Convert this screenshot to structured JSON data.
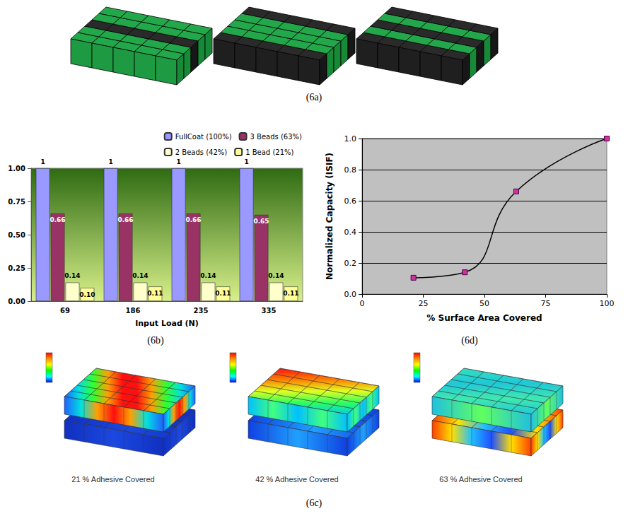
{
  "captions": {
    "6a": "(6a)",
    "6b": "(6b)",
    "6c": "(6c)",
    "6d": "(6d)"
  },
  "chart_data": [
    {
      "type": "bar",
      "categories": [
        "69",
        "186",
        "235",
        "335"
      ],
      "xlabel": "Input Load (N)",
      "series": [
        {
          "name": "FullCoat (100%)",
          "color": "#9999ff",
          "values": [
            1,
            1,
            1,
            1
          ]
        },
        {
          "name": "3 Beads (63%)",
          "color": "#993366",
          "values": [
            0.66,
            0.66,
            0.66,
            0.65
          ]
        },
        {
          "name": "2 Beads (42%)",
          "color": "#ffffcc",
          "values": [
            0.14,
            0.14,
            0.14,
            0.14
          ]
        },
        {
          "name": "1 Bead (21%)",
          "color": "#ffff99",
          "values": [
            0.1,
            0.11,
            0.11,
            0.11
          ],
          "value_labels": [
            "0.10",
            "0.11",
            "0.11",
            "0.11"
          ]
        }
      ],
      "ylim": [
        0,
        1
      ],
      "yticks": [
        {
          "value": 0,
          "label": "0.00"
        },
        0.25,
        {
          "value": 0.5,
          "label": "0.50"
        },
        0.75,
        {
          "value": 1,
          "label": "1.00"
        }
      ],
      "legend": "upper right",
      "data_labels": true,
      "grid": false
    },
    {
      "type": "line",
      "x": [
        21,
        42,
        63,
        100
      ],
      "values": [
        0.105,
        0.14,
        0.66,
        1.0
      ],
      "xlabel": "% Surface Area Covered",
      "ylabel": "Normalized Capacity (ISIF)",
      "xlim": [
        0,
        100
      ],
      "xticks": [
        0,
        25,
        50,
        75,
        100
      ],
      "ylim": [
        0,
        1
      ],
      "yticks": [
        {
          "value": 0,
          "label": "0.0"
        },
        0.2,
        0.4,
        0.6,
        0.8,
        {
          "value": 1,
          "label": "1.0"
        }
      ],
      "grid": true,
      "color": "#000000",
      "marker": "square",
      "line_style": "smooth"
    }
  ],
  "fea_labels": [
    "21 % Adhesive Covered",
    "42 % Adhesive Covered",
    "63 % Adhesive Covered"
  ]
}
